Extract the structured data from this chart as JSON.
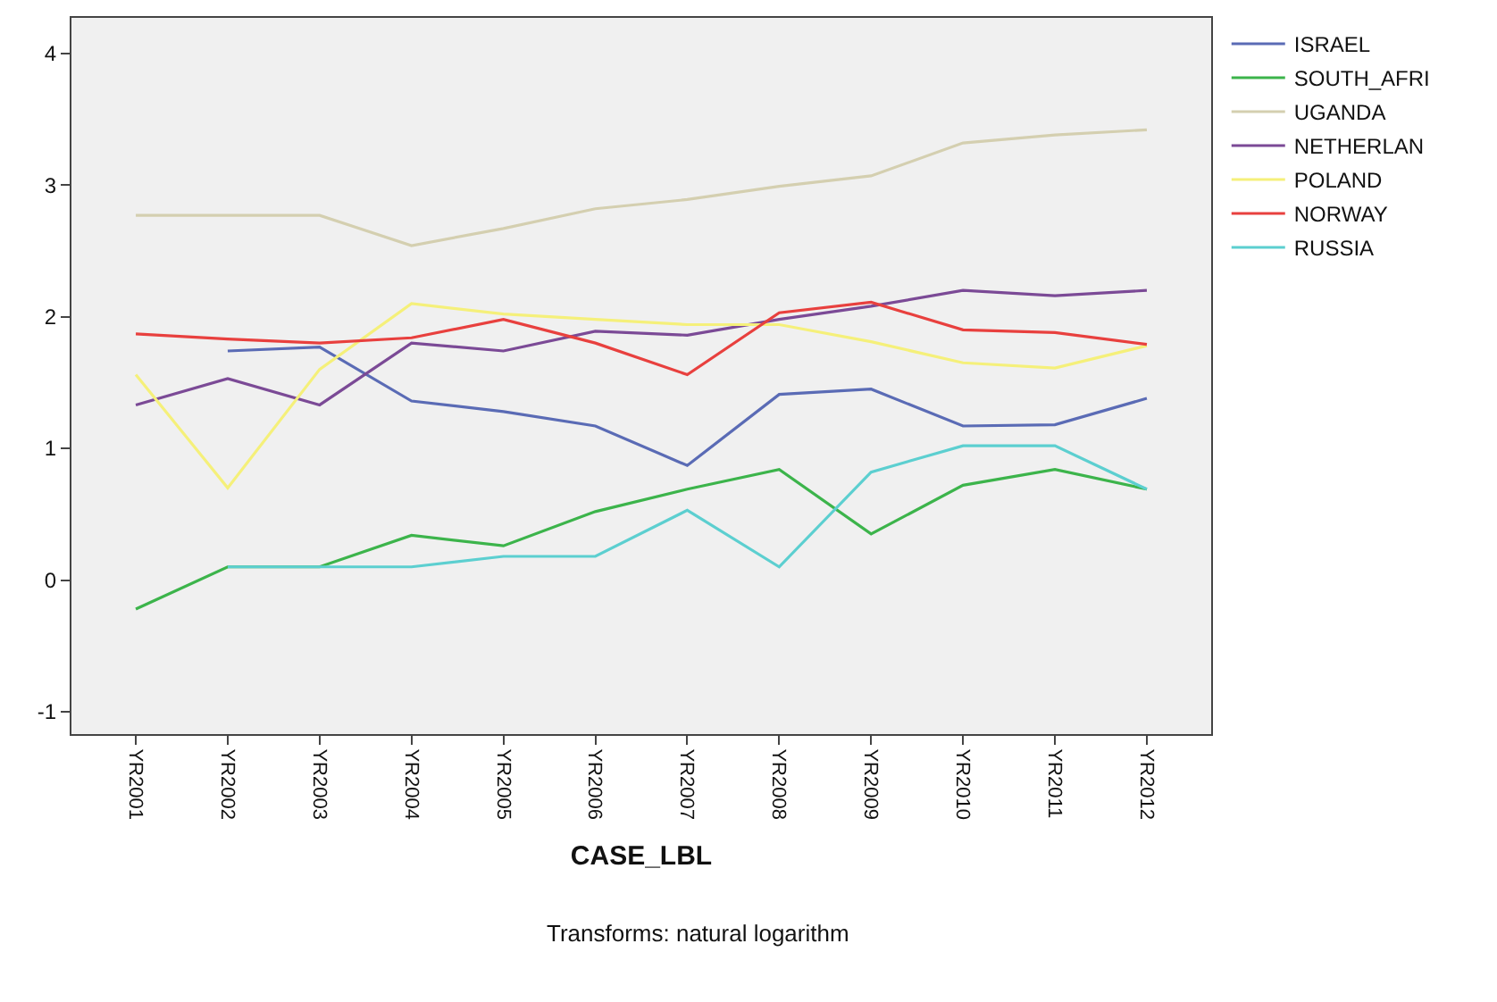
{
  "chart_data": {
    "type": "line",
    "xlabel": "CASE_LBL",
    "categories": [
      "YR2001",
      "YR2002",
      "YR2003",
      "YR2004",
      "YR2005",
      "YR2006",
      "YR2007",
      "YR2008",
      "YR2009",
      "YR2010",
      "YR2011",
      "YR2012"
    ],
    "series": [
      {
        "name": "ISRAEL",
        "color": "#5a6bb5",
        "values": [
          null,
          1.74,
          1.77,
          1.36,
          1.28,
          1.17,
          0.87,
          1.41,
          1.45,
          1.17,
          1.18,
          1.38
        ]
      },
      {
        "name": "SOUTH_AFRI",
        "color": "#3cb44b",
        "values": [
          -0.22,
          0.1,
          0.1,
          0.34,
          0.26,
          0.52,
          0.69,
          0.84,
          0.35,
          0.72,
          0.84,
          0.69
        ]
      },
      {
        "name": "UGANDA",
        "color": "#d4cfb0",
        "values": [
          2.77,
          2.77,
          2.77,
          2.54,
          2.67,
          2.82,
          2.89,
          2.99,
          3.07,
          3.32,
          3.38,
          3.42
        ]
      },
      {
        "name": "NETHERLAN",
        "color": "#7b4a96",
        "values": [
          1.33,
          1.53,
          1.33,
          1.8,
          1.74,
          1.89,
          1.86,
          1.98,
          2.08,
          2.2,
          2.16,
          2.2
        ]
      },
      {
        "name": "POLAND",
        "color": "#f5f07a",
        "values": [
          1.56,
          0.7,
          1.6,
          2.1,
          2.02,
          1.98,
          1.94,
          1.94,
          1.81,
          1.65,
          1.61,
          1.78
        ]
      },
      {
        "name": "NORWAY",
        "color": "#e8403e",
        "values": [
          1.87,
          1.83,
          1.8,
          1.84,
          1.98,
          1.8,
          1.56,
          2.03,
          2.11,
          1.9,
          1.88,
          1.79
        ]
      },
      {
        "name": "RUSSIA",
        "color": "#5ccfd0",
        "values": [
          null,
          0.1,
          0.1,
          0.1,
          0.18,
          0.18,
          0.53,
          0.1,
          0.82,
          1.02,
          1.02,
          0.69
        ]
      }
    ],
    "ylim": [
      -1.17,
      4.27
    ],
    "yticks": [
      -1,
      0,
      1,
      2,
      3,
      4
    ],
    "grid": false,
    "legend": "top right",
    "marker": "none",
    "line_style": "solid",
    "annotations": [
      "Transforms: natural logarithm"
    ]
  }
}
